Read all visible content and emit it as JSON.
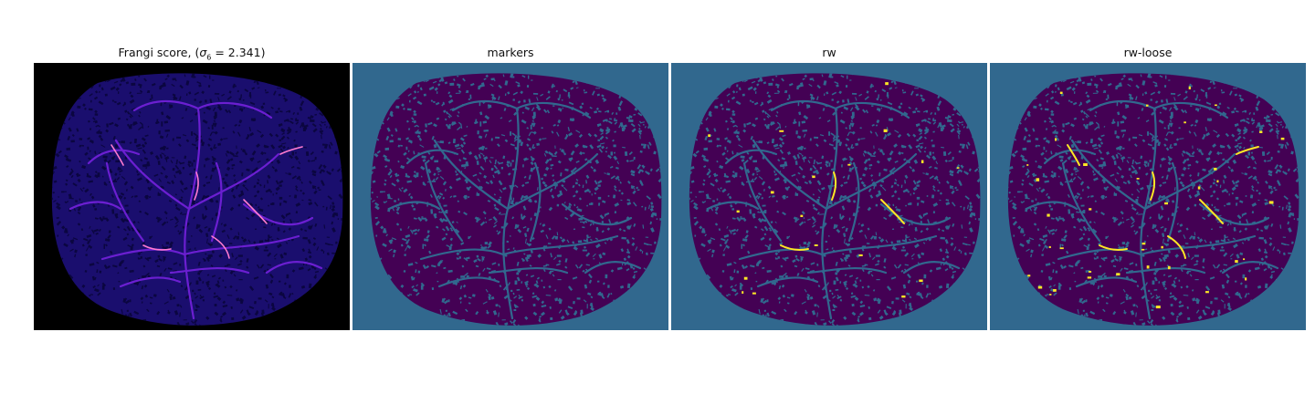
{
  "panels": [
    {
      "title_prefix": "Frangi score, (",
      "title_sigma": "σ",
      "title_subscript": "6",
      "title_suffix": " = 2.341)",
      "background_color": "#000000",
      "mask_color": "#1a0e6e",
      "speckle_color": "#0b0640",
      "vessel_color": "#6b1fd1",
      "highlight_color": "#ff7bd0"
    },
    {
      "title": "markers",
      "background_color": "#31688e",
      "mask_color": "#440154",
      "speckle_color": "#31688e",
      "vessel_color": "#31688e",
      "highlight_color": "#31688e"
    },
    {
      "title": "rw",
      "background_color": "#31688e",
      "mask_color": "#440154",
      "speckle_color": "#31688e",
      "vessel_color": "#31688e",
      "highlight_color": "#fde725"
    },
    {
      "title": "rw-loose",
      "background_color": "#31688e",
      "mask_color": "#440154",
      "speckle_color": "#31688e",
      "vessel_color": "#31688e",
      "highlight_color": "#fde725"
    }
  ]
}
